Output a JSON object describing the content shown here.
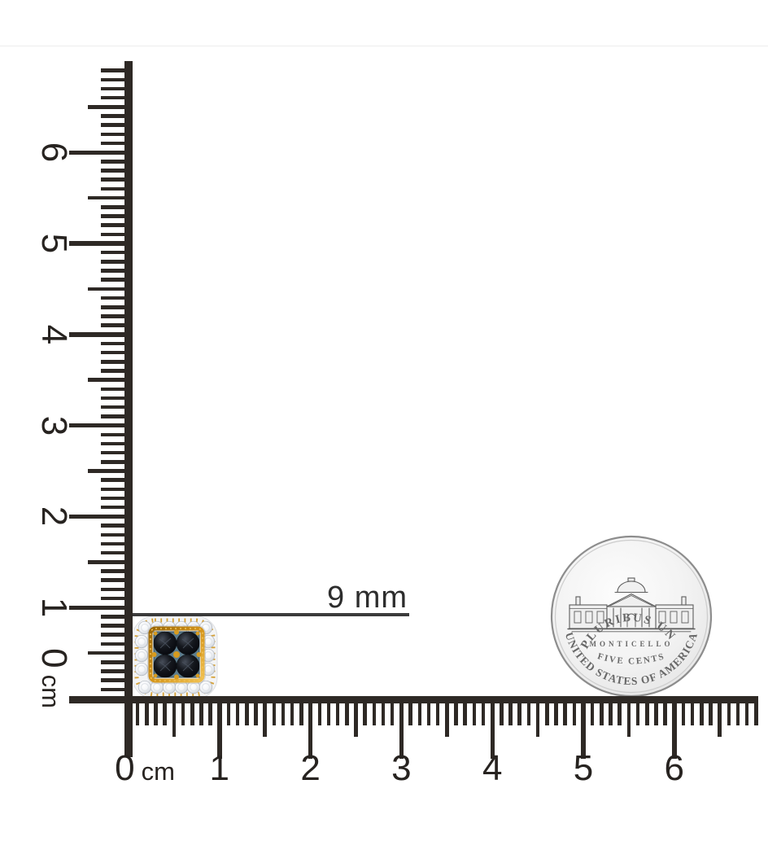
{
  "annotation": {
    "measurement_label": "9 mm"
  },
  "rulers": {
    "unit": "cm",
    "vertical": {
      "labels": [
        "0",
        "1",
        "2",
        "3",
        "4",
        "5",
        "6"
      ],
      "mm_max": 69
    },
    "horizontal": {
      "labels": [
        "0",
        "1",
        "2",
        "3",
        "4",
        "5",
        "6"
      ],
      "mm_max": 69
    }
  },
  "coin": {
    "legend_top": "E PLURIBUS UNUM",
    "building_name": "MONTICELLO",
    "denomination": "FIVE CENTS",
    "legend_bottom": "UNITED STATES OF AMERICA"
  },
  "objects": {
    "earring": "black-diamond-halo-stud-earring",
    "coin": "us-nickel-coin-reverse"
  },
  "colors": {
    "ruler": "#2e2925",
    "annotation_line": "#3b3b3b",
    "gold": "#cf9216",
    "gold_deep": "#9a6708",
    "white_diamond": "#eef0f3",
    "black_diamond": "#0b0d12",
    "coin_silver": "#f1f1f1",
    "coin_rim": "#8d8d8d",
    "coin_text": "#686868"
  }
}
